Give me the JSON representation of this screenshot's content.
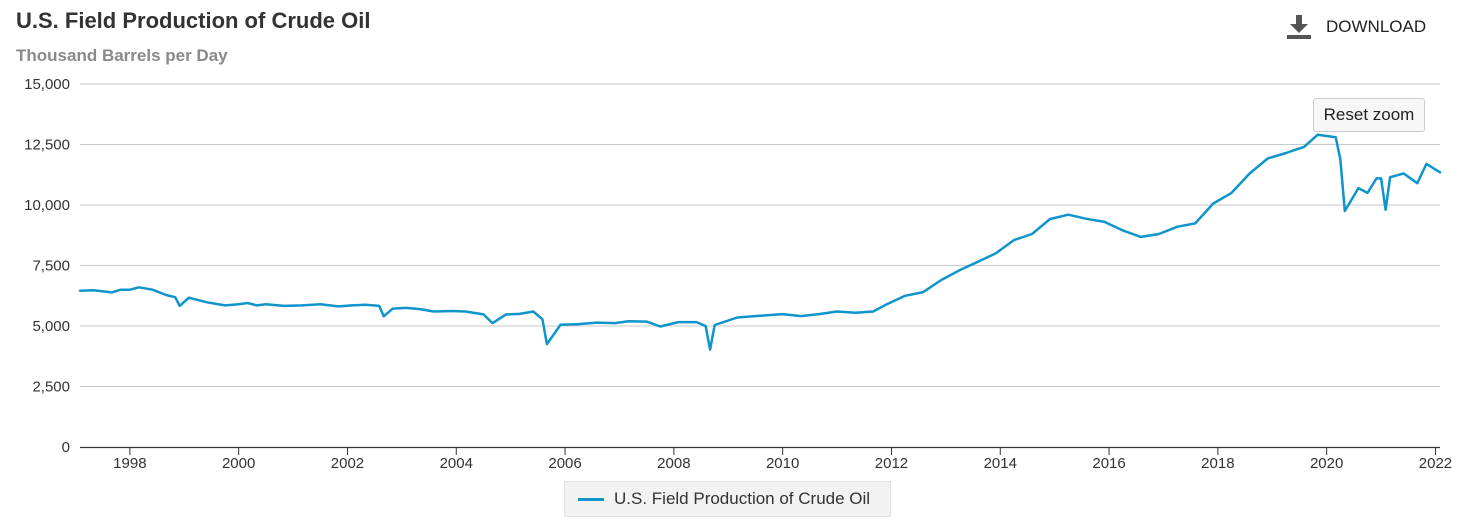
{
  "header": {
    "download_label": "DOWNLOAD",
    "download_icon": "download-icon"
  },
  "zoom": {
    "reset_label": "Reset zoom"
  },
  "colors": {
    "series": "#0f94cc",
    "grid": "#c8c8c8",
    "axis": "#333333"
  },
  "chart_data": {
    "type": "line",
    "title": "U.S. Field Production of Crude Oil",
    "subtitle": "Thousand Barrels per Day",
    "xlabel": "",
    "ylabel": "",
    "ylim": [
      0,
      15000
    ],
    "xlim": [
      "1997-02",
      "2022-02"
    ],
    "yticks": [
      "0",
      "2,500",
      "5,000",
      "7,500",
      "10,000",
      "12,500",
      "15,000"
    ],
    "xticks": [
      "1998",
      "2000",
      "2002",
      "2004",
      "2006",
      "2008",
      "2010",
      "2012",
      "2014",
      "2016",
      "2018",
      "2020",
      "2022"
    ],
    "grid": true,
    "legend_position": "bottom-center",
    "series": [
      {
        "name": "U.S. Field Production of Crude Oil",
        "color": "#0f94cc",
        "points": [
          [
            "1997-02",
            6460
          ],
          [
            "1997-05",
            6480
          ],
          [
            "1997-09",
            6390
          ],
          [
            "1997-11",
            6500
          ],
          [
            "1998-01",
            6500
          ],
          [
            "1998-03",
            6600
          ],
          [
            "1998-06",
            6500
          ],
          [
            "1998-09",
            6280
          ],
          [
            "1998-11",
            6190
          ],
          [
            "1998-12",
            5830
          ],
          [
            "1999-02",
            6170
          ],
          [
            "1999-06",
            5980
          ],
          [
            "1999-10",
            5850
          ],
          [
            "2000-01",
            5900
          ],
          [
            "2000-03",
            5950
          ],
          [
            "2000-05",
            5850
          ],
          [
            "2000-07",
            5900
          ],
          [
            "2000-11",
            5830
          ],
          [
            "2001-03",
            5850
          ],
          [
            "2001-07",
            5900
          ],
          [
            "2001-11",
            5810
          ],
          [
            "2002-02",
            5850
          ],
          [
            "2002-05",
            5880
          ],
          [
            "2002-08",
            5830
          ],
          [
            "2002-09",
            5400
          ],
          [
            "2002-11",
            5720
          ],
          [
            "2003-02",
            5750
          ],
          [
            "2003-05",
            5700
          ],
          [
            "2003-08",
            5600
          ],
          [
            "2003-12",
            5620
          ],
          [
            "2004-03",
            5600
          ],
          [
            "2004-07",
            5480
          ],
          [
            "2004-09",
            5120
          ],
          [
            "2004-12",
            5480
          ],
          [
            "2005-03",
            5500
          ],
          [
            "2005-06",
            5600
          ],
          [
            "2005-08",
            5280
          ],
          [
            "2005-09",
            4250
          ],
          [
            "2005-12",
            5050
          ],
          [
            "2006-04",
            5080
          ],
          [
            "2006-08",
            5140
          ],
          [
            "2006-12",
            5120
          ],
          [
            "2007-03",
            5200
          ],
          [
            "2007-07",
            5180
          ],
          [
            "2007-10",
            4980
          ],
          [
            "2008-02",
            5160
          ],
          [
            "2008-06",
            5160
          ],
          [
            "2008-08",
            5000
          ],
          [
            "2008-09",
            4020
          ],
          [
            "2008-10",
            5040
          ],
          [
            "2009-03",
            5350
          ],
          [
            "2009-08",
            5420
          ],
          [
            "2010-01",
            5490
          ],
          [
            "2010-05",
            5410
          ],
          [
            "2010-09",
            5490
          ],
          [
            "2011-01",
            5600
          ],
          [
            "2011-05",
            5550
          ],
          [
            "2011-09",
            5600
          ],
          [
            "2011-12",
            5900
          ],
          [
            "2012-04",
            6250
          ],
          [
            "2012-08",
            6400
          ],
          [
            "2012-12",
            6900
          ],
          [
            "2013-04",
            7300
          ],
          [
            "2013-08",
            7650
          ],
          [
            "2013-12",
            8000
          ],
          [
            "2014-04",
            8550
          ],
          [
            "2014-08",
            8800
          ],
          [
            "2014-12",
            9420
          ],
          [
            "2015-04",
            9600
          ],
          [
            "2015-08",
            9430
          ],
          [
            "2015-12",
            9300
          ],
          [
            "2016-04",
            8950
          ],
          [
            "2016-08",
            8680
          ],
          [
            "2016-12",
            8800
          ],
          [
            "2017-04",
            9100
          ],
          [
            "2017-08",
            9240
          ],
          [
            "2017-12",
            10060
          ],
          [
            "2018-04",
            10500
          ],
          [
            "2018-08",
            11300
          ],
          [
            "2018-12",
            11920
          ],
          [
            "2019-04",
            12150
          ],
          [
            "2019-08",
            12400
          ],
          [
            "2019-11",
            12900
          ],
          [
            "2020-03",
            12800
          ],
          [
            "2020-04",
            11900
          ],
          [
            "2020-05",
            9750
          ],
          [
            "2020-08",
            10700
          ],
          [
            "2020-10",
            10500
          ],
          [
            "2020-12",
            11100
          ],
          [
            "2021-01",
            11100
          ],
          [
            "2021-02",
            9800
          ],
          [
            "2021-03",
            11150
          ],
          [
            "2021-06",
            11300
          ],
          [
            "2021-09",
            10900
          ],
          [
            "2021-11",
            11700
          ],
          [
            "2022-02",
            11350
          ]
        ]
      }
    ]
  }
}
